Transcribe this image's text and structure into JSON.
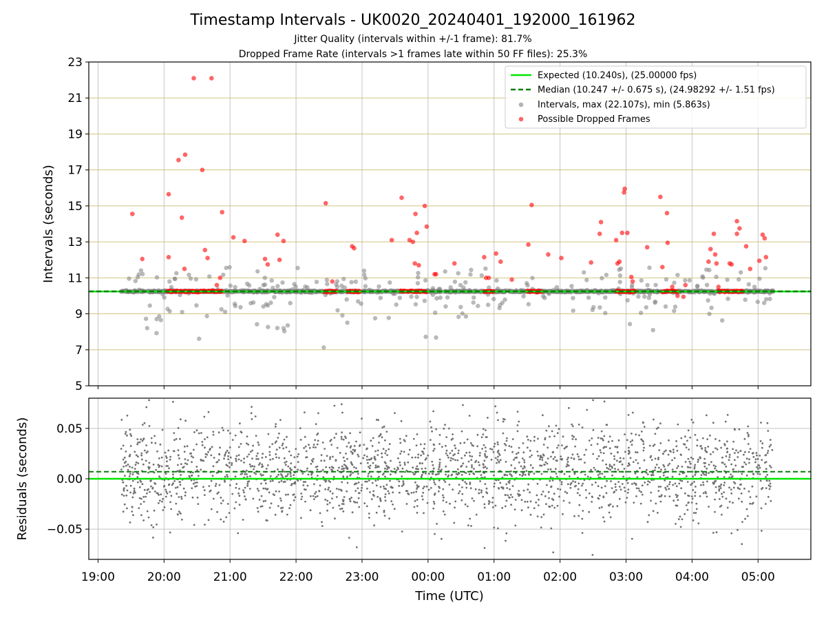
{
  "figure": {
    "title": "Timestamp Intervals - UK0020_20240401_192000_161962",
    "subtitle_1": "Jitter Quality (intervals within +/-1 frame): 81.7%",
    "subtitle_2": "Dropped Frame Rate (intervals >1 frames late within 50 FF files): 25.3%",
    "xlabel": "Time (UTC)"
  },
  "chart_data": [
    {
      "type": "scatter",
      "panel": "intervals",
      "ylabel": "Intervals (seconds)",
      "ylim": [
        5,
        23
      ],
      "yticks": [
        5,
        7,
        9,
        11,
        13,
        15,
        17,
        19,
        21,
        23
      ],
      "xlim_hours": [
        18.86,
        29.8
      ],
      "xticks": [
        {
          "label": "19:00",
          "h": 19
        },
        {
          "label": "20:00",
          "h": 20
        },
        {
          "label": "21:00",
          "h": 21
        },
        {
          "label": "22:00",
          "h": 22
        },
        {
          "label": "23:00",
          "h": 23
        },
        {
          "label": "00:00",
          "h": 24
        },
        {
          "label": "01:00",
          "h": 25
        },
        {
          "label": "02:00",
          "h": 26
        },
        {
          "label": "03:00",
          "h": 27
        },
        {
          "label": "04:00",
          "h": 28
        },
        {
          "label": "05:00",
          "h": 29
        }
      ],
      "grid": "vertical gray + horizontal gold",
      "expected_interval": 10.24,
      "median_interval": 10.247,
      "time_range_hours": [
        19.35,
        29.23
      ],
      "legend_position": "upper right",
      "legend": [
        {
          "label": "Expected (10.240s), (25.00000 fps)",
          "style": "line",
          "color": "#00e600"
        },
        {
          "label": "Median (10.247 +/- 0.675 s), (24.98292 +/- 1.51 fps)",
          "style": "dashed",
          "color": "#007f00"
        },
        {
          "label": "Intervals, max (22.107s), min (5.863s)",
          "style": "marker",
          "color": "#808080"
        },
        {
          "label": "Possible Dropped Frames",
          "style": "marker",
          "color": "#ff0000"
        }
      ],
      "dropped_frames": [
        [
          19.52,
          14.55
        ],
        [
          19.67,
          12.05
        ],
        [
          20.07,
          15.65
        ],
        [
          20.07,
          12.15
        ],
        [
          20.22,
          17.55
        ],
        [
          20.27,
          14.35
        ],
        [
          20.32,
          17.85
        ],
        [
          20.31,
          11.5
        ],
        [
          20.45,
          22.1
        ],
        [
          20.72,
          22.1
        ],
        [
          20.58,
          17.0
        ],
        [
          20.62,
          12.55
        ],
        [
          20.66,
          12.1
        ],
        [
          20.8,
          10.6
        ],
        [
          20.85,
          11.0
        ],
        [
          20.88,
          14.65
        ],
        [
          21.05,
          13.25
        ],
        [
          21.22,
          13.05
        ],
        [
          21.53,
          12.05
        ],
        [
          21.57,
          11.75
        ],
        [
          21.72,
          13.4
        ],
        [
          21.75,
          12.0
        ],
        [
          21.81,
          13.05
        ],
        [
          22.45,
          15.15
        ],
        [
          22.55,
          10.8
        ],
        [
          22.85,
          12.75
        ],
        [
          22.88,
          12.65
        ],
        [
          23.45,
          13.1
        ],
        [
          23.6,
          15.45
        ],
        [
          23.72,
          13.1
        ],
        [
          23.77,
          13.0
        ],
        [
          23.8,
          11.8
        ],
        [
          23.81,
          14.55
        ],
        [
          23.83,
          13.5
        ],
        [
          23.86,
          11.7
        ],
        [
          23.95,
          15.0
        ],
        [
          23.98,
          13.85
        ],
        [
          24.1,
          11.2
        ],
        [
          24.12,
          11.2
        ],
        [
          24.4,
          11.8
        ],
        [
          24.85,
          12.15
        ],
        [
          24.88,
          11.0
        ],
        [
          24.92,
          11.0
        ],
        [
          25.03,
          12.35
        ],
        [
          25.1,
          11.9
        ],
        [
          25.27,
          10.9
        ],
        [
          25.57,
          15.05
        ],
        [
          25.52,
          12.85
        ],
        [
          25.82,
          12.3
        ],
        [
          26.02,
          12.1
        ],
        [
          26.47,
          11.85
        ],
        [
          26.62,
          14.1
        ],
        [
          26.6,
          13.45
        ],
        [
          26.85,
          13.1
        ],
        [
          26.87,
          11.8
        ],
        [
          26.9,
          11.9
        ],
        [
          26.97,
          15.75
        ],
        [
          26.98,
          15.95
        ],
        [
          26.94,
          13.5
        ],
        [
          27.02,
          13.5
        ],
        [
          27.08,
          11.05
        ],
        [
          27.1,
          10.8
        ],
        [
          27.32,
          12.7
        ],
        [
          27.52,
          15.5
        ],
        [
          27.55,
          11.6
        ],
        [
          27.63,
          12.95
        ],
        [
          27.62,
          14.6
        ],
        [
          27.7,
          10.5
        ],
        [
          27.78,
          10.0
        ],
        [
          27.87,
          9.95
        ],
        [
          27.9,
          10.6
        ],
        [
          28.25,
          11.9
        ],
        [
          28.28,
          12.6
        ],
        [
          28.33,
          13.45
        ],
        [
          28.37,
          11.8
        ],
        [
          28.35,
          12.3
        ],
        [
          28.57,
          11.8
        ],
        [
          28.6,
          11.75
        ],
        [
          28.68,
          13.45
        ],
        [
          28.68,
          14.15
        ],
        [
          28.72,
          13.75
        ],
        [
          28.82,
          12.75
        ],
        [
          28.88,
          11.5
        ],
        [
          29.02,
          11.95
        ],
        [
          29.07,
          13.4
        ],
        [
          29.1,
          13.2
        ],
        [
          29.12,
          12.15
        ],
        [
          28.4,
          10.5
        ]
      ],
      "dropped_clusters": [
        [
          20.05,
          20.88
        ],
        [
          22.43,
          22.62
        ],
        [
          22.78,
          22.98
        ],
        [
          23.58,
          23.98
        ],
        [
          24.85,
          25.0
        ],
        [
          25.5,
          25.72
        ],
        [
          26.85,
          27.15
        ],
        [
          27.55,
          27.78
        ],
        [
          28.4,
          28.58
        ],
        [
          28.6,
          28.78
        ]
      ]
    },
    {
      "type": "scatter",
      "panel": "residuals",
      "ylabel": "Residuals (seconds)",
      "ylim": [
        -0.08,
        0.08
      ],
      "yticks": [
        {
          "label": "−0.05",
          "v": -0.05
        },
        {
          "label": "0.00",
          "v": 0.0
        },
        {
          "label": "0.05",
          "v": 0.05
        }
      ],
      "expected_residual": 0.0,
      "median_residual": 0.007,
      "residual_spread": [
        -0.078,
        0.078
      ]
    }
  ]
}
